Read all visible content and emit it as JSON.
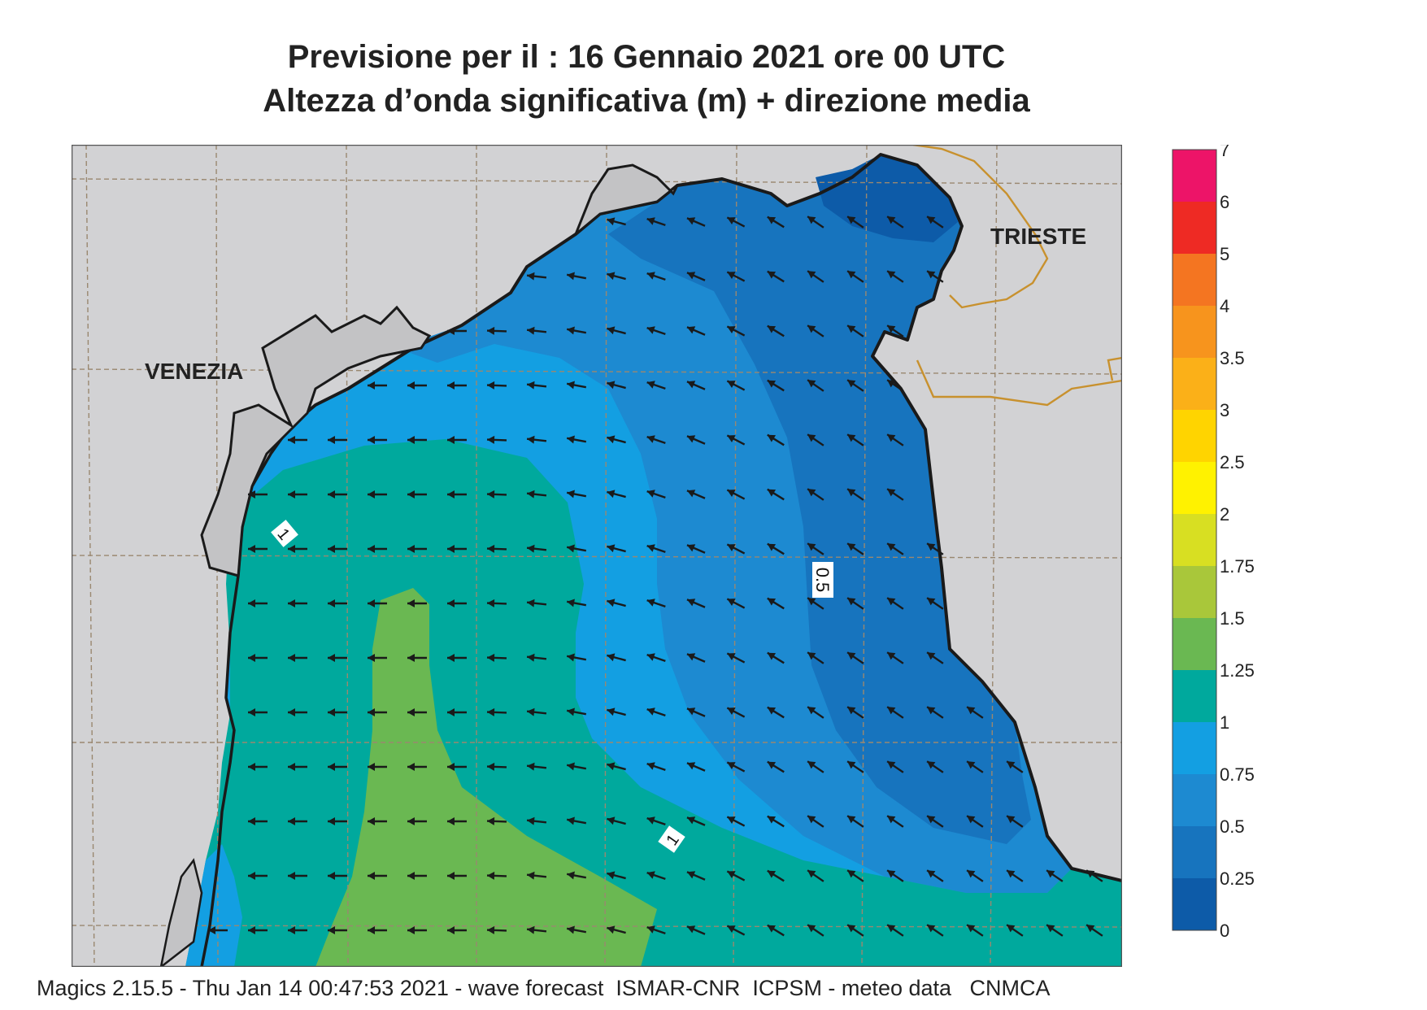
{
  "header": {
    "title": "Previsione per il  :  16  Gennaio  2021   ore 00 UTC",
    "subtitle": "Altezza d’onda significativa (m) + direzione media"
  },
  "map": {
    "places": [
      {
        "name": "VENEZIA"
      },
      {
        "name": "TRIESTE"
      }
    ],
    "contour_labels": [
      "1",
      "0.5",
      "1"
    ],
    "arrow_direction": "toward west / south-west",
    "colors": {
      "land": "#d2d2d4",
      "coastline": "#1a1a1a",
      "border": "#c8912e",
      "grid": "#9a8870"
    }
  },
  "legend": {
    "ticks": [
      "0",
      "0.25",
      "0.5",
      "0.75",
      "1",
      "1.25",
      "1.5",
      "1.75",
      "2",
      "2.5",
      "3",
      "3.5",
      "4",
      "5",
      "6",
      "7"
    ],
    "colors": [
      "#0d5ba8",
      "#1774be",
      "#1d8ad1",
      "#139fe2",
      "#00a99d",
      "#6ab852",
      "#a9c73a",
      "#d8df22",
      "#fff200",
      "#ffd400",
      "#fbb018",
      "#f7941d",
      "#f47521",
      "#ee2a24",
      "#ed1468"
    ]
  },
  "footer": {
    "text": "Magics 2.15.5 - Thu Jan 14 00:47:53 2021 - wave forecast  ISMAR-CNR  ICPSM - meteo data   CNMCA"
  }
}
